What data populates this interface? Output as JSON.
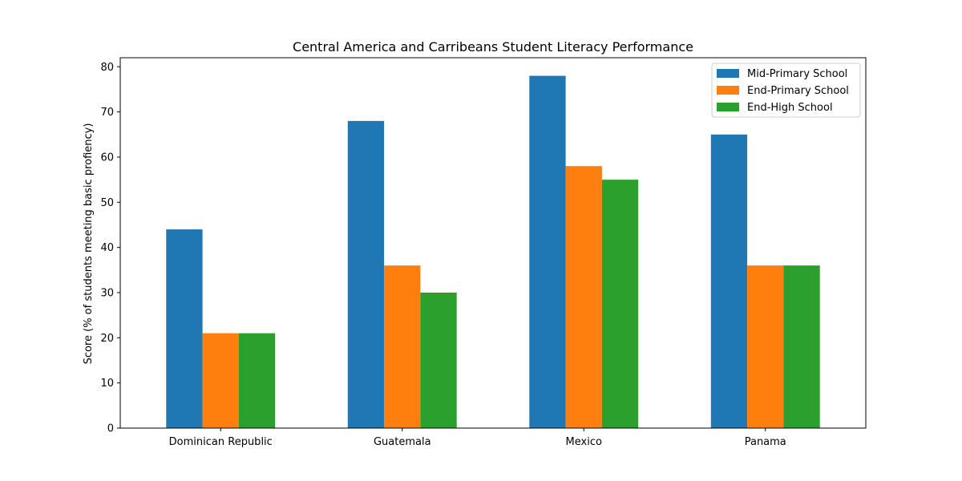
{
  "chart_data": {
    "type": "bar",
    "title": "Central America and Carribeans Student Literacy Performance",
    "xlabel": "",
    "ylabel": "Score (% of students meeting basic profiency)",
    "categories": [
      "Dominican Republic",
      "Guatemala",
      "Mexico",
      "Panama"
    ],
    "series": [
      {
        "name": "Mid-Primary School",
        "color": "#1f77b4",
        "values": [
          44,
          68,
          78,
          65
        ]
      },
      {
        "name": "End-Primary School",
        "color": "#ff7f0e",
        "values": [
          21,
          36,
          58,
          36
        ]
      },
      {
        "name": "End-High School",
        "color": "#2ca02c",
        "values": [
          21,
          30,
          55,
          36
        ]
      }
    ],
    "ylim": [
      0,
      82
    ],
    "yticks": [
      0,
      10,
      20,
      30,
      40,
      50,
      60,
      70,
      80
    ],
    "grid": false,
    "legend_position": "top-right"
  }
}
